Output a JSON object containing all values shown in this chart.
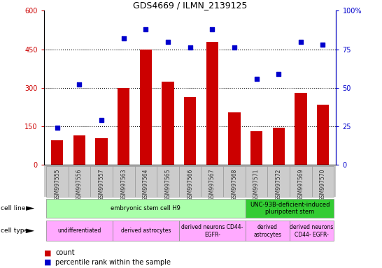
{
  "title": "GDS4669 / ILMN_2139125",
  "samples": [
    "GSM997555",
    "GSM997556",
    "GSM997557",
    "GSM997563",
    "GSM997564",
    "GSM997565",
    "GSM997566",
    "GSM997567",
    "GSM997568",
    "GSM997571",
    "GSM997572",
    "GSM997569",
    "GSM997570"
  ],
  "counts": [
    95,
    115,
    105,
    300,
    450,
    325,
    265,
    480,
    205,
    130,
    145,
    280,
    235
  ],
  "percentiles": [
    24,
    52,
    29,
    82,
    88,
    80,
    76,
    88,
    76,
    56,
    59,
    80,
    78
  ],
  "ylim_left": [
    0,
    600
  ],
  "ylim_right": [
    0,
    100
  ],
  "yticks_left": [
    0,
    150,
    300,
    450,
    600
  ],
  "yticks_right": [
    0,
    25,
    50,
    75,
    100
  ],
  "ytick_labels_right": [
    "0",
    "25",
    "50",
    "75",
    "100%"
  ],
  "bar_color": "#cc0000",
  "dot_color": "#0000cc",
  "cell_line_groups": [
    {
      "label": "embryonic stem cell H9",
      "start": 0,
      "end": 9,
      "color": "#aaffaa"
    },
    {
      "label": "UNC-93B-deficient-induced\npluripotent stem",
      "start": 9,
      "end": 13,
      "color": "#33cc33"
    }
  ],
  "cell_type_groups": [
    {
      "label": "undifferentiated",
      "start": 0,
      "end": 3,
      "color": "#ffaaff"
    },
    {
      "label": "derived astrocytes",
      "start": 3,
      "end": 6,
      "color": "#ffaaff"
    },
    {
      "label": "derived neurons CD44-\nEGFR-",
      "start": 6,
      "end": 9,
      "color": "#ffaaff"
    },
    {
      "label": "derived\nastrocytes",
      "start": 9,
      "end": 11,
      "color": "#ffaaff"
    },
    {
      "label": "derived neurons\nCD44- EGFR-",
      "start": 11,
      "end": 13,
      "color": "#ffaaff"
    }
  ],
  "bg_color": "#ffffff",
  "xtick_bg": "#cccccc"
}
